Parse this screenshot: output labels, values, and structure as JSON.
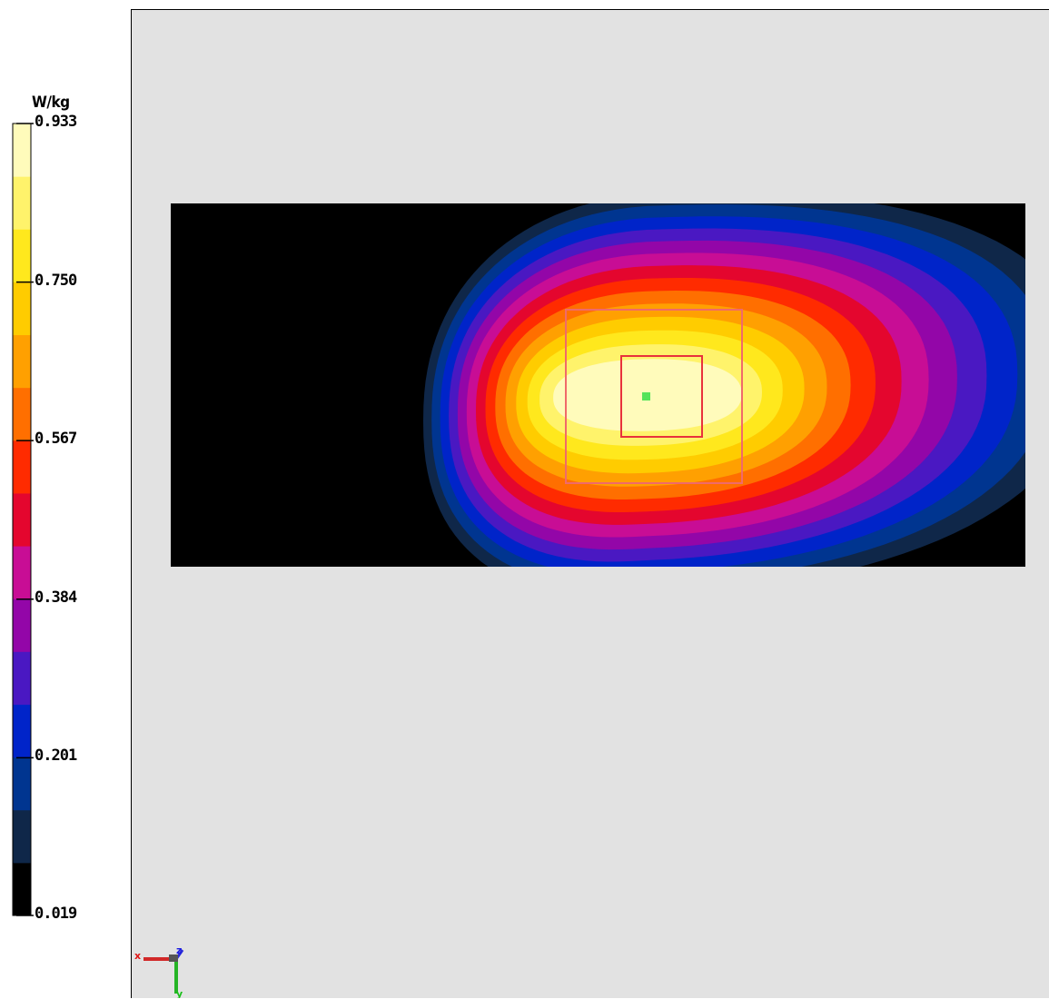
{
  "chart_data": {
    "type": "heatmap",
    "unit": "W/kg",
    "value_min": 0.019,
    "value_max": 0.933,
    "tick_labels": [
      "0.933",
      "0.750",
      "0.567",
      "0.384",
      "0.201",
      "0.019"
    ],
    "tick_values": [
      0.933,
      0.75,
      0.567,
      0.384,
      0.201,
      0.019
    ],
    "colormap": [
      "#000000",
      "#0f2749",
      "#003590",
      "#0024c9",
      "#4a18c2",
      "#9306a8",
      "#c80d95",
      "#e4062e",
      "#ff2b00",
      "#ff6f00",
      "#ffa001",
      "#ffcc00",
      "#ffe81d",
      "#fff36b",
      "#fffbbb"
    ],
    "peak_value": 0.933,
    "background_value": 0.019,
    "axis_labels": {
      "x": "x",
      "y": "y",
      "z": "z"
    }
  }
}
